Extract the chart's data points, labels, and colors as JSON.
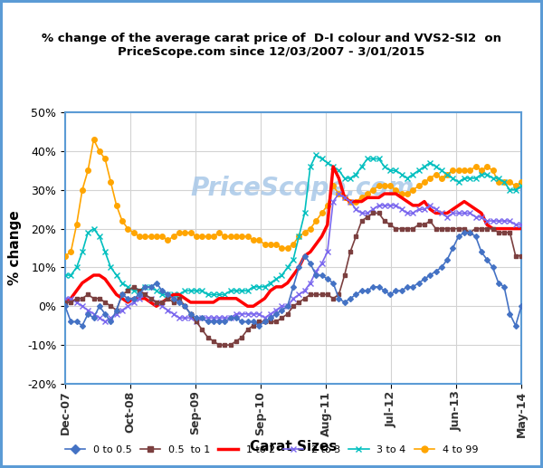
{
  "title_line1": "% change of the average carat price of  D-I colour and VVS2-SI2  on",
  "title_line2": "PriceScope.com since 12/03/2007 - 3/01/2015",
  "xlabel": "Carat Sizes",
  "ylabel": "% change",
  "watermark": "PriceScope.com",
  "ylim": [
    -20,
    50
  ],
  "yticks": [
    -20,
    -10,
    0,
    10,
    20,
    30,
    40,
    50
  ],
  "xtick_labels": [
    "Dec-07",
    "Oct-08",
    "Sep-09",
    "Sep-10",
    "Aug-11",
    "Jul-12",
    "Jun-13",
    "May-14"
  ],
  "background_color": "#ffffff",
  "border_color": "#5b9bd5",
  "series": {
    "0to05": {
      "label": "0 to 0.5",
      "color": "#4472C4",
      "marker": "D",
      "markersize": 3,
      "linewidth": 1.2,
      "values": [
        0,
        -4,
        -4,
        -5,
        -2,
        -3,
        0,
        -2,
        -4,
        -1,
        3,
        2,
        2,
        3,
        5,
        5,
        6,
        4,
        3,
        2,
        1,
        0,
        -2,
        -3,
        -3,
        -4,
        -4,
        -4,
        -4,
        -3,
        -3,
        -4,
        -4,
        -4,
        -5,
        -4,
        -3,
        -2,
        -1,
        0,
        5,
        10,
        13,
        11,
        8,
        8,
        7,
        6,
        2,
        1,
        2,
        3,
        4,
        4,
        5,
        5,
        4,
        3,
        4,
        4,
        5,
        5,
        6,
        7,
        8,
        9,
        10,
        12,
        15,
        18,
        19,
        19,
        18,
        14,
        12,
        10,
        6,
        5,
        -2,
        -5,
        0
      ]
    },
    "05to1": {
      "label": "0.5  to 1",
      "color": "#7B3F3F",
      "marker": "s",
      "markersize": 3,
      "linewidth": 1.2,
      "values": [
        1,
        1,
        2,
        2,
        3,
        2,
        2,
        1,
        0,
        -1,
        3,
        4,
        5,
        4,
        3,
        2,
        1,
        1,
        2,
        1,
        2,
        0,
        -2,
        -4,
        -6,
        -8,
        -9,
        -10,
        -10,
        -10,
        -9,
        -8,
        -6,
        -5,
        -4,
        -4,
        -4,
        -4,
        -3,
        -2,
        0,
        1,
        2,
        3,
        3,
        3,
        3,
        2,
        3,
        8,
        14,
        18,
        22,
        23,
        24,
        24,
        22,
        21,
        20,
        20,
        20,
        20,
        21,
        21,
        22,
        20,
        20,
        20,
        20,
        20,
        20,
        19,
        20,
        20,
        20,
        20,
        19,
        19,
        19,
        13,
        13
      ]
    },
    "1to2": {
      "label": "1 to 2",
      "color": "#FF0000",
      "marker": null,
      "markersize": 0,
      "linewidth": 2.5,
      "values": [
        1,
        2,
        4,
        6,
        7,
        8,
        8,
        7,
        5,
        3,
        2,
        1,
        2,
        2,
        2,
        1,
        0,
        1,
        2,
        3,
        3,
        2,
        1,
        1,
        1,
        1,
        1,
        2,
        2,
        2,
        2,
        1,
        0,
        0,
        1,
        2,
        4,
        5,
        5,
        6,
        8,
        10,
        13,
        14,
        16,
        18,
        21,
        36,
        33,
        28,
        27,
        27,
        27,
        28,
        28,
        28,
        29,
        29,
        29,
        28,
        27,
        26,
        26,
        27,
        25,
        24,
        24,
        24,
        25,
        26,
        27,
        26,
        25,
        24,
        21,
        20,
        20,
        20,
        20,
        20,
        20
      ]
    },
    "2to3": {
      "label": "2 to 3",
      "color": "#7B68EE",
      "marker": "x",
      "markersize": 4,
      "linewidth": 1.2,
      "values": [
        2,
        2,
        1,
        0,
        -1,
        -2,
        -3,
        -4,
        -3,
        -2,
        -1,
        0,
        1,
        2,
        3,
        2,
        1,
        0,
        -1,
        -2,
        -3,
        -3,
        -3,
        -4,
        -3,
        -3,
        -3,
        -3,
        -3,
        -3,
        -2,
        -2,
        -2,
        -2,
        -2,
        -3,
        -2,
        -1,
        0,
        0,
        2,
        3,
        4,
        6,
        9,
        11,
        14,
        27,
        29,
        28,
        27,
        25,
        24,
        24,
        25,
        26,
        26,
        26,
        26,
        25,
        24,
        24,
        25,
        25,
        26,
        25,
        24,
        23,
        24,
        24,
        24,
        24,
        23,
        23,
        22,
        22,
        22,
        22,
        22,
        21,
        21
      ]
    },
    "3to4": {
      "label": "3 to 4",
      "color": "#00BFBF",
      "marker": "x",
      "markersize": 4,
      "linewidth": 1.2,
      "values": [
        8,
        8,
        10,
        14,
        19,
        20,
        18,
        14,
        10,
        8,
        6,
        5,
        4,
        4,
        5,
        5,
        4,
        3,
        3,
        3,
        3,
        4,
        4,
        4,
        4,
        3,
        3,
        3,
        3,
        4,
        4,
        4,
        4,
        5,
        5,
        5,
        6,
        7,
        8,
        10,
        12,
        18,
        24,
        36,
        39,
        38,
        37,
        36,
        35,
        33,
        33,
        34,
        36,
        38,
        38,
        38,
        36,
        35,
        35,
        34,
        33,
        34,
        35,
        36,
        37,
        36,
        35,
        34,
        33,
        32,
        33,
        33,
        33,
        34,
        34,
        33,
        33,
        32,
        30,
        30,
        31
      ]
    },
    "4to99": {
      "label": "4 to 99",
      "color": "#FFA500",
      "marker": "o",
      "markersize": 4,
      "linewidth": 1.2,
      "values": [
        13,
        14,
        21,
        30,
        35,
        43,
        40,
        38,
        32,
        26,
        22,
        20,
        19,
        18,
        18,
        18,
        18,
        18,
        17,
        18,
        19,
        19,
        19,
        18,
        18,
        18,
        18,
        19,
        18,
        18,
        18,
        18,
        18,
        17,
        17,
        16,
        16,
        16,
        15,
        15,
        16,
        18,
        19,
        20,
        22,
        24,
        26,
        31,
        29,
        28,
        27,
        27,
        28,
        29,
        30,
        31,
        31,
        31,
        30,
        29,
        29,
        30,
        31,
        32,
        33,
        34,
        33,
        34,
        35,
        35,
        35,
        35,
        36,
        35,
        36,
        35,
        32,
        32,
        32,
        31,
        32
      ]
    }
  }
}
